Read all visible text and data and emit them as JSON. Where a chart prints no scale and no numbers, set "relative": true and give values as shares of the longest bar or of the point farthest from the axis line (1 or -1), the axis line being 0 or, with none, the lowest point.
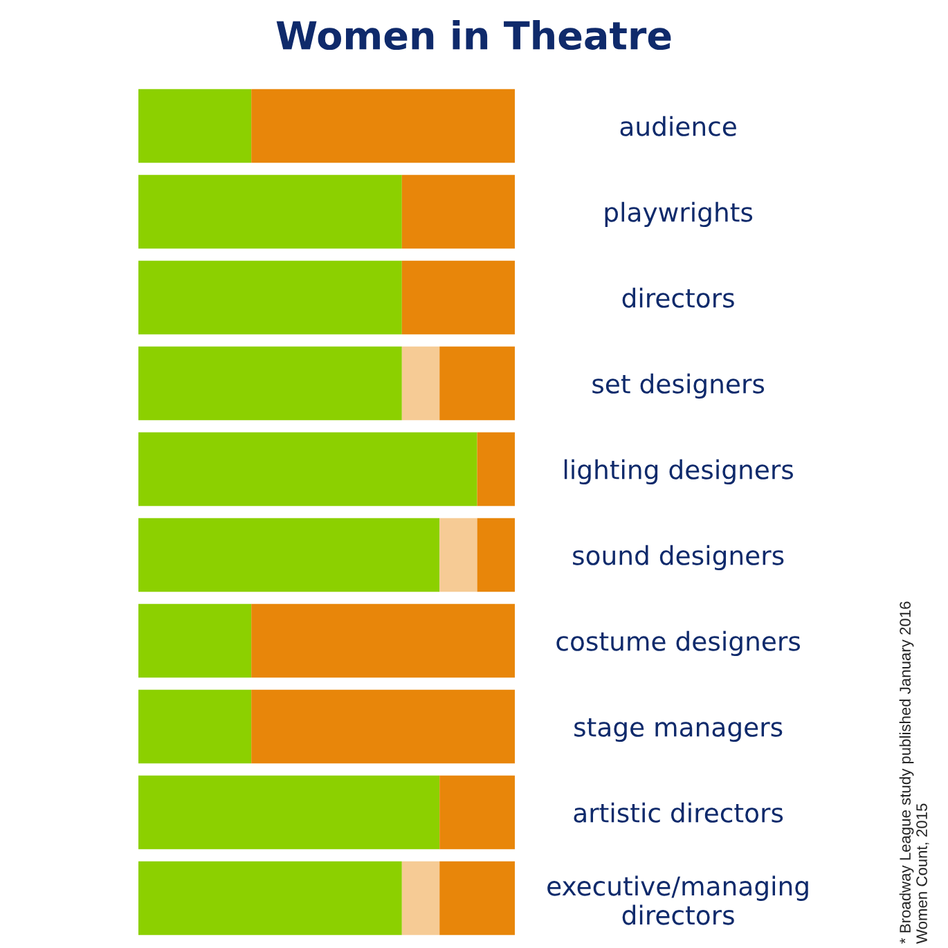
{
  "chart_data": {
    "type": "bar",
    "title": "Women in Theatre",
    "orientation": "horizontal",
    "stacked": true,
    "relative": true,
    "categories": [
      "audience",
      "playwrights",
      "directors",
      "set designers",
      "lighting designers",
      "sound designers",
      "costume designers",
      "stage managers",
      "artistic directors",
      "executive/managing\ndirectors"
    ],
    "series": [
      {
        "color": "#8cd000",
        "values": [
          0.3,
          0.7,
          0.7,
          0.7,
          0.9,
          0.8,
          0.3,
          0.3,
          0.8,
          0.7
        ]
      },
      {
        "color": "#f6cb95",
        "values": [
          null,
          null,
          null,
          0.1,
          null,
          0.1,
          null,
          null,
          null,
          0.1
        ]
      },
      {
        "color": "#e8860a",
        "values": [
          0.7,
          0.3,
          0.3,
          0.2,
          0.1,
          0.1,
          0.7,
          0.7,
          0.2,
          0.2
        ]
      }
    ],
    "annotations": [
      "* Broadway League study published January 2016",
      "Women Count, 2015"
    ]
  }
}
